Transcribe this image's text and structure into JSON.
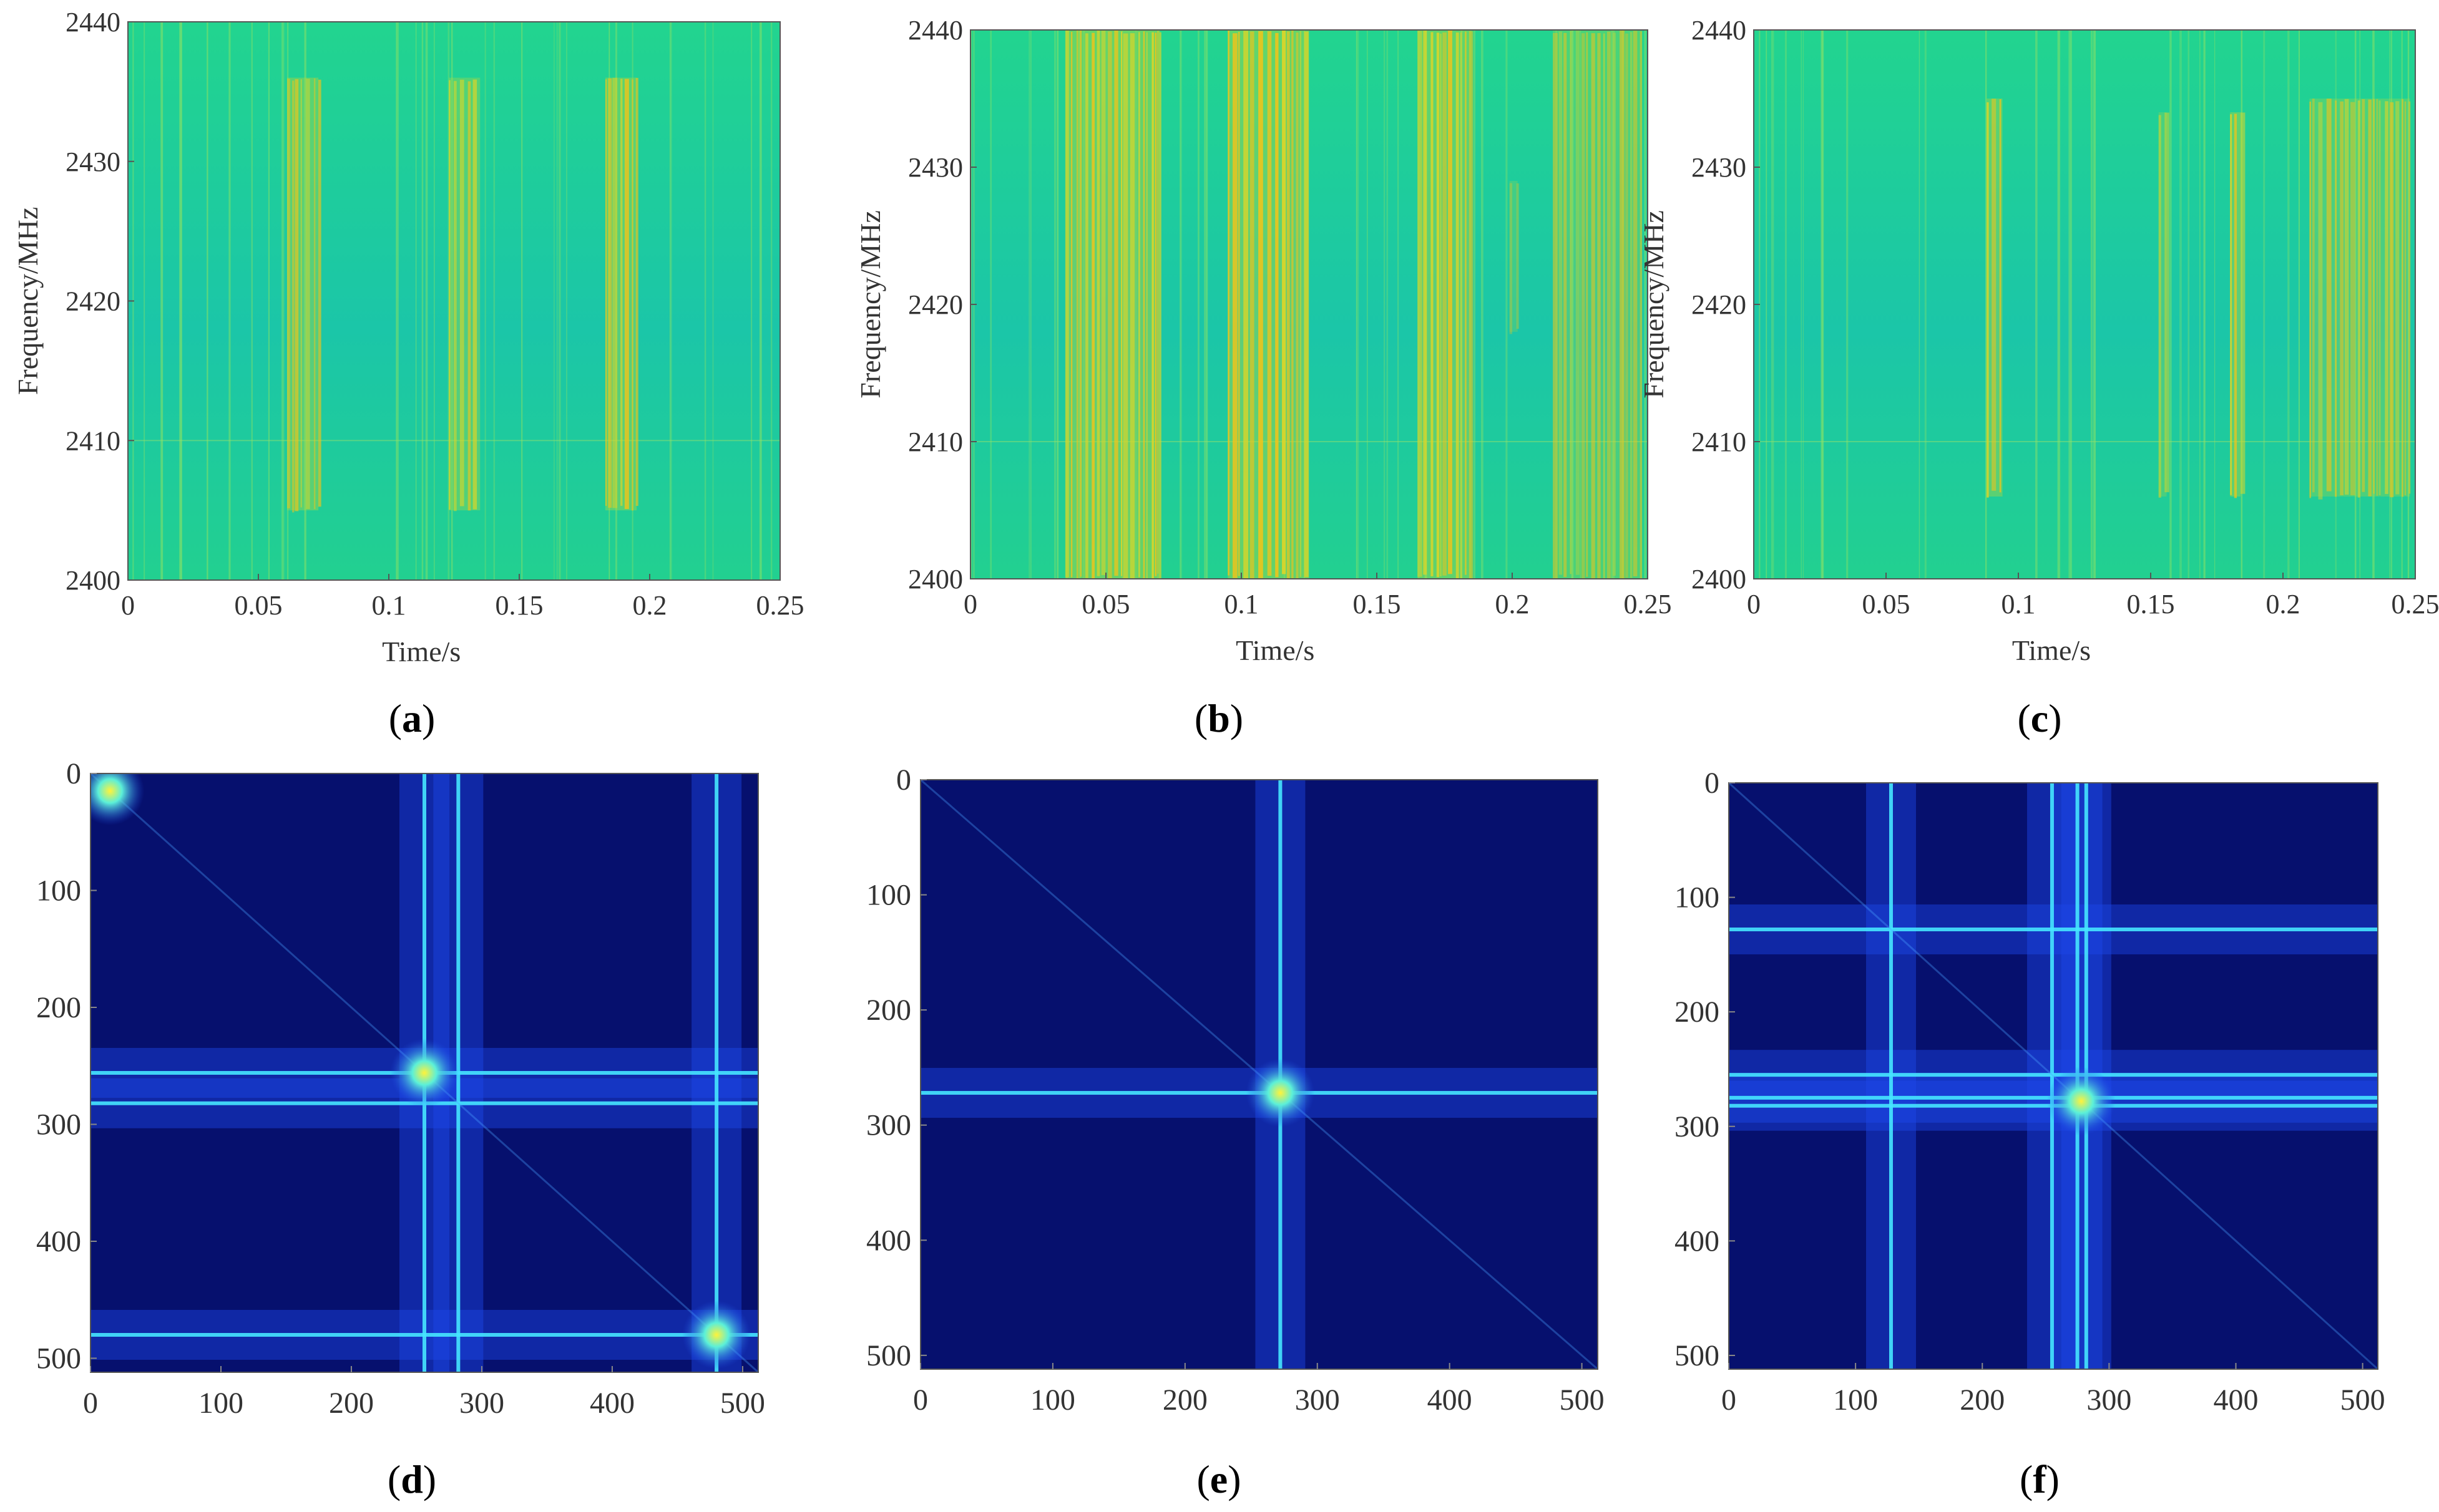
{
  "colors": {
    "spectro_bg": "#1fd39a",
    "spectro_band": "#f0c419",
    "corr_bg": "#06106e",
    "corr_line": "#46e6ff",
    "axis": "#555555"
  },
  "chart_data": [
    {
      "id": "a",
      "type": "heatmap",
      "caption_letter": "a",
      "xlabel": "Time/s",
      "ylabel": "Frequency/MHz",
      "xlim": [
        0,
        0.25
      ],
      "ylim": [
        2400,
        2440
      ],
      "xticks": [
        "0",
        "0.05",
        "0.1",
        "0.15",
        "0.2",
        "0.25"
      ],
      "yticks": [
        "2400",
        "2410",
        "2420",
        "2430",
        "2440"
      ],
      "bursts": [
        {
          "t0": 0.061,
          "t1": 0.073,
          "f0": 2405,
          "f1": 2436,
          "strength": 0.85
        },
        {
          "t0": 0.123,
          "t1": 0.135,
          "f0": 2405,
          "f1": 2436,
          "strength": 0.75
        },
        {
          "t0": 0.183,
          "t1": 0.195,
          "f0": 2405,
          "f1": 2436,
          "strength": 0.85
        }
      ]
    },
    {
      "id": "b",
      "type": "heatmap",
      "caption_letter": "b",
      "xlabel": "Time/s",
      "ylabel": "Frequency/MHz",
      "xlim": [
        0,
        0.25
      ],
      "ylim": [
        2400,
        2440
      ],
      "xticks": [
        "0",
        "0.05",
        "0.1",
        "0.15",
        "0.2",
        "0.25"
      ],
      "yticks": [
        "2400",
        "2410",
        "2420",
        "2430",
        "2440"
      ],
      "bursts": [
        {
          "t0": 0.035,
          "t1": 0.07,
          "f0": 2400,
          "f1": 2440,
          "strength": 1.0
        },
        {
          "t0": 0.095,
          "t1": 0.125,
          "f0": 2400,
          "f1": 2440,
          "strength": 0.95
        },
        {
          "t0": 0.165,
          "t1": 0.185,
          "f0": 2400,
          "f1": 2440,
          "strength": 0.9
        },
        {
          "t0": 0.199,
          "t1": 0.202,
          "f0": 2418,
          "f1": 2429,
          "strength": 0.5
        },
        {
          "t0": 0.215,
          "t1": 0.248,
          "f0": 2400,
          "f1": 2440,
          "strength": 0.6
        }
      ]
    },
    {
      "id": "c",
      "type": "heatmap",
      "caption_letter": "c",
      "xlabel": "Time/s",
      "ylabel": "Frequency/MHz",
      "xlim": [
        0,
        0.25
      ],
      "ylim": [
        2400,
        2440
      ],
      "xticks": [
        "0",
        "0.05",
        "0.1",
        "0.15",
        "0.2",
        "0.25"
      ],
      "yticks": [
        "2400",
        "2410",
        "2420",
        "2430",
        "2440"
      ],
      "bursts": [
        {
          "t0": 0.088,
          "t1": 0.094,
          "f0": 2406,
          "f1": 2435,
          "strength": 0.85
        },
        {
          "t0": 0.153,
          "t1": 0.156,
          "f0": 2406,
          "f1": 2434,
          "strength": 0.6
        },
        {
          "t0": 0.18,
          "t1": 0.184,
          "f0": 2406,
          "f1": 2434,
          "strength": 0.9
        },
        {
          "t0": 0.21,
          "t1": 0.248,
          "f0": 2406,
          "f1": 2435,
          "strength": 0.65
        }
      ]
    },
    {
      "id": "d",
      "type": "heatmap",
      "caption_letter": "d",
      "xlim": [
        0,
        512
      ],
      "ylim": [
        0,
        512
      ],
      "xticks": [
        "0",
        "100",
        "200",
        "300",
        "400",
        "500"
      ],
      "yticks": [
        "0",
        "100",
        "200",
        "300",
        "400",
        "500"
      ],
      "lines": [
        256,
        282,
        480
      ],
      "hot_spots": [
        [
          256,
          256
        ],
        [
          480,
          480
        ],
        [
          15,
          15
        ]
      ]
    },
    {
      "id": "e",
      "type": "heatmap",
      "caption_letter": "e",
      "xlim": [
        0,
        512
      ],
      "ylim": [
        0,
        512
      ],
      "xticks": [
        "0",
        "100",
        "200",
        "300",
        "400",
        "500"
      ],
      "yticks": [
        "0",
        "100",
        "200",
        "300",
        "400",
        "500"
      ],
      "lines": [
        272
      ],
      "hot_spots": [
        [
          272,
          272
        ]
      ]
    },
    {
      "id": "f",
      "type": "heatmap",
      "caption_letter": "f",
      "xlim": [
        0,
        512
      ],
      "ylim": [
        0,
        512
      ],
      "xticks": [
        "0",
        "100",
        "200",
        "300",
        "400",
        "500"
      ],
      "yticks": [
        "0",
        "100",
        "200",
        "300",
        "400",
        "500"
      ],
      "lines": [
        128,
        255,
        275,
        282
      ],
      "hot_spots": [
        [
          278,
          278
        ]
      ]
    }
  ]
}
